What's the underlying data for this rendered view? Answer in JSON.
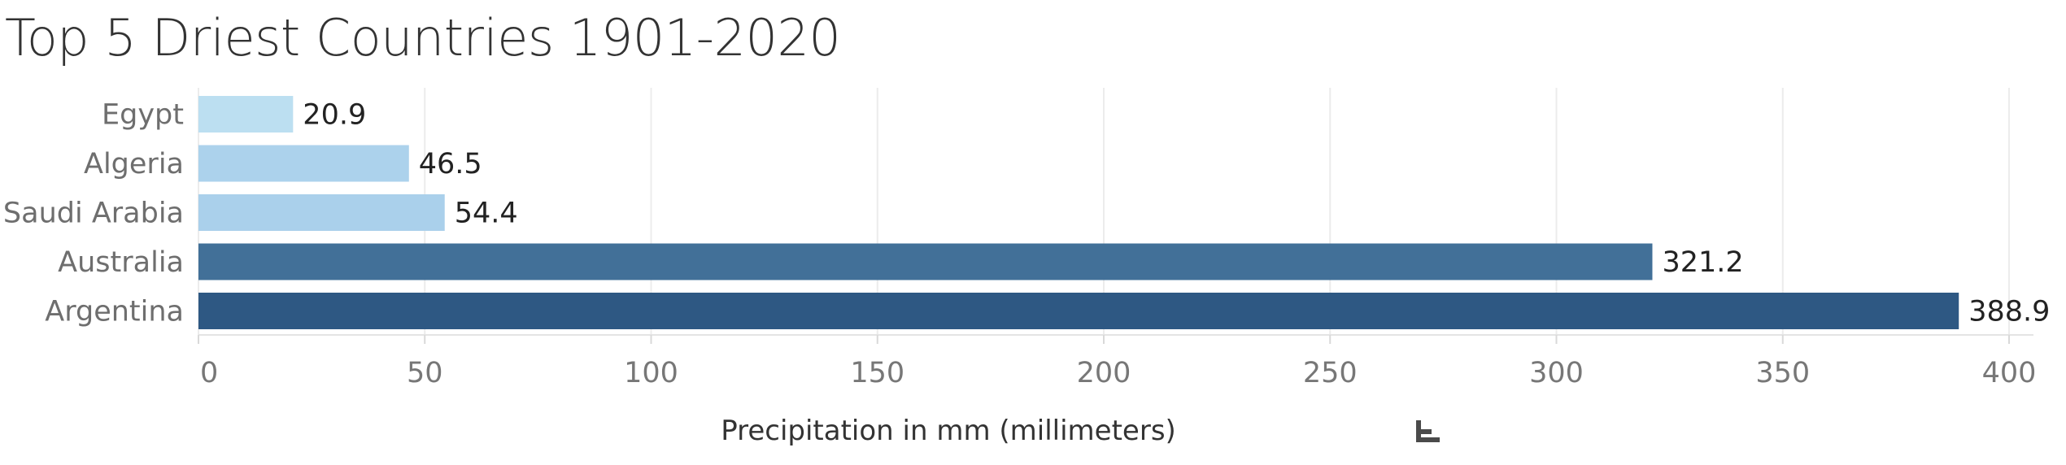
{
  "chart_data": {
    "type": "bar",
    "orientation": "horizontal",
    "title": "Top 5 Driest Countries 1901-2020",
    "xlabel": "Precipitation in mm (millimeters)",
    "ylabel": "",
    "categories": [
      "Egypt",
      "Algeria",
      "Saudi Arabia",
      "Australia",
      "Argentina"
    ],
    "values": [
      20.9,
      46.5,
      54.4,
      321.2,
      388.9
    ],
    "value_labels": [
      "20.9",
      "46.5",
      "54.4",
      "321.2",
      "388.9"
    ],
    "bar_colors": [
      "#bcdff1",
      "#acd2ec",
      "#aad0eb",
      "#427098",
      "#2e5883"
    ],
    "xlim": [
      0,
      400
    ],
    "xticks": [
      0,
      50,
      100,
      150,
      200,
      250,
      300,
      350,
      400
    ],
    "grid": "vertical",
    "sort_icon": "sort-descending-icon"
  }
}
